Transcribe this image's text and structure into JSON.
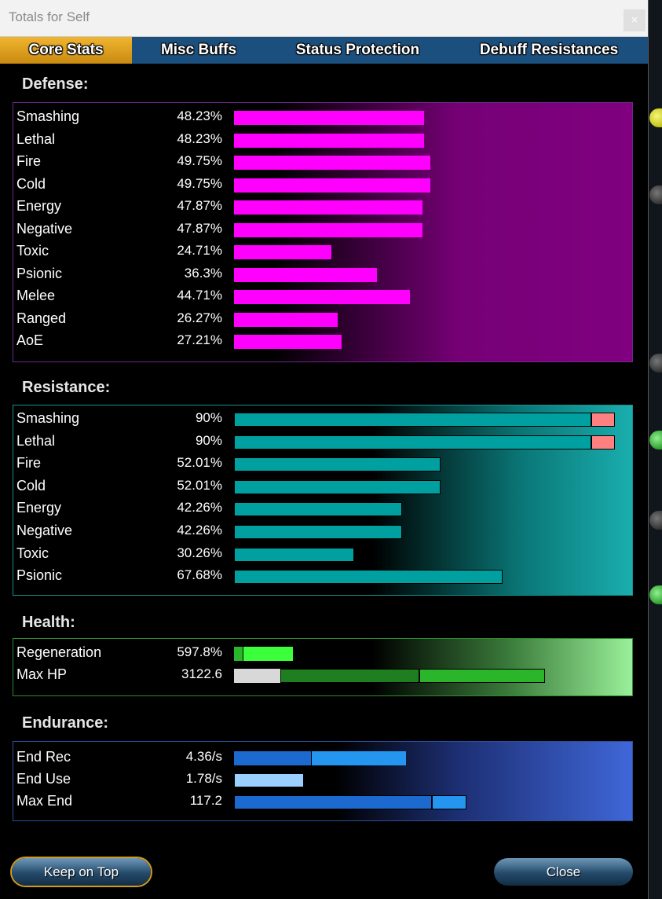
{
  "window": {
    "title": "Totals for Self",
    "close_glyph": "×"
  },
  "tabs": [
    {
      "label": "Core Stats",
      "active": true
    },
    {
      "label": "Misc Buffs",
      "active": false
    },
    {
      "label": "Status Protection",
      "active": false
    },
    {
      "label": "Debuff Resistances",
      "active": false
    }
  ],
  "defense": {
    "title": "Defense:",
    "rows": [
      {
        "label": "Smashing",
        "value": "48.23%",
        "pct": 48.23
      },
      {
        "label": "Lethal",
        "value": "48.23%",
        "pct": 48.23
      },
      {
        "label": "Fire",
        "value": "49.75%",
        "pct": 49.75
      },
      {
        "label": "Cold",
        "value": "49.75%",
        "pct": 49.75
      },
      {
        "label": "Energy",
        "value": "47.87%",
        "pct": 47.87
      },
      {
        "label": "Negative",
        "value": "47.87%",
        "pct": 47.87
      },
      {
        "label": "Toxic",
        "value": "24.71%",
        "pct": 24.71
      },
      {
        "label": "Psionic",
        "value": "36.3%",
        "pct": 36.3
      },
      {
        "label": "Melee",
        "value": "44.71%",
        "pct": 44.71
      },
      {
        "label": "Ranged",
        "value": "26.27%",
        "pct": 26.27
      },
      {
        "label": "AoE",
        "value": "27.21%",
        "pct": 27.21
      }
    ]
  },
  "resistance": {
    "title": "Resistance:",
    "rows": [
      {
        "label": "Smashing",
        "value": "90%",
        "pct": 90,
        "excess": true
      },
      {
        "label": "Lethal",
        "value": "90%",
        "pct": 90,
        "excess": true
      },
      {
        "label": "Fire",
        "value": "52.01%",
        "pct": 52.01
      },
      {
        "label": "Cold",
        "value": "52.01%",
        "pct": 52.01
      },
      {
        "label": "Energy",
        "value": "42.26%",
        "pct": 42.26
      },
      {
        "label": "Negative",
        "value": "42.26%",
        "pct": 42.26
      },
      {
        "label": "Toxic",
        "value": "30.26%",
        "pct": 30.26
      },
      {
        "label": "Psionic",
        "value": "67.68%",
        "pct": 67.68
      }
    ]
  },
  "health": {
    "title": "Health:",
    "rows": [
      {
        "label": "Regeneration",
        "value": "597.8%"
      },
      {
        "label": "Max HP",
        "value": "3122.6"
      }
    ]
  },
  "endurance": {
    "title": "Endurance:",
    "rows": [
      {
        "label": "End Rec",
        "value": "4.36/s"
      },
      {
        "label": "End Use",
        "value": "1.78/s"
      },
      {
        "label": "Max End",
        "value": "117.2"
      }
    ]
  },
  "colors": {
    "defense_bar": "#ff00ff",
    "resistance_bar": "#00a0a0",
    "resistance_excess": "#ff8080",
    "health_bar": "#2bb52b",
    "endurance_bar": "#1f7ae0",
    "tab_active": "#e3a321",
    "tab_bar": "#1b4f7d"
  },
  "buttons": {
    "keep_on_top": "Keep on Top",
    "close": "Close"
  }
}
